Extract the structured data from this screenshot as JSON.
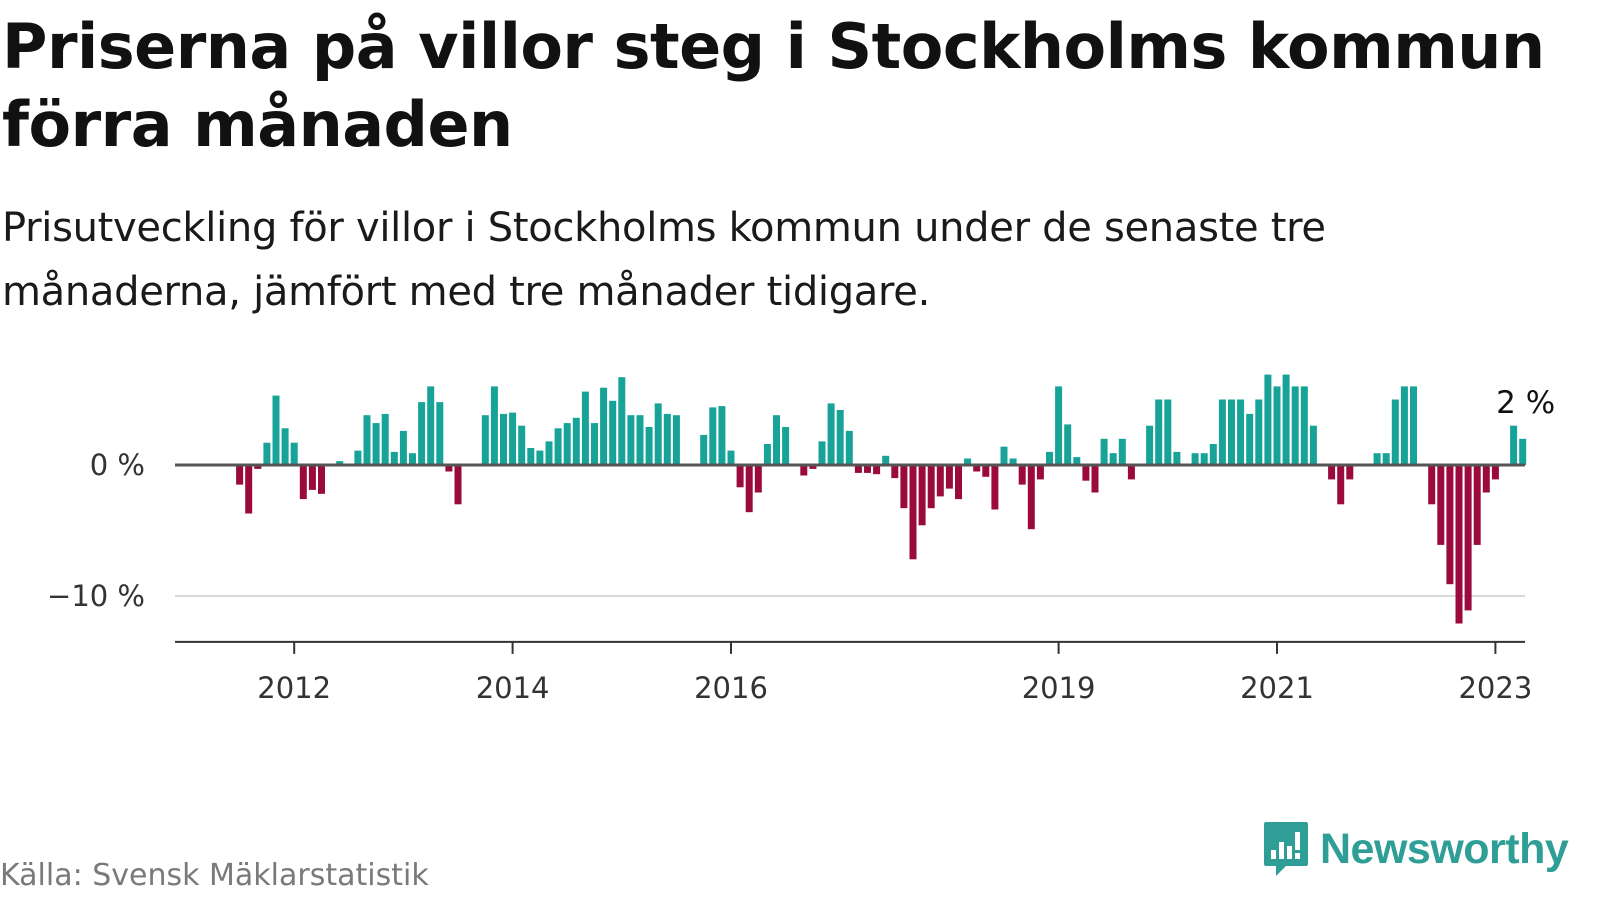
{
  "title": "Priserna på villor steg i Stockholms kommun förra månaden",
  "subtitle": "Prisutveckling för villor i Stockholms kommun under de senaste tre månaderna, jämfört med tre månader tidigare.",
  "source": "Källa: Svensk Mäklarstatistik",
  "brand": {
    "name": "Newsworthy",
    "logo_icon": "bar-chart-speech-bubble-icon"
  },
  "colors": {
    "positive": "#17a398",
    "negative": "#9b0a3d",
    "zero_line": "#555555",
    "grid": "#d9d9d9",
    "axis": "#333333",
    "brand": "#2e9e96"
  },
  "chart_data": {
    "type": "bar",
    "ylabel": "",
    "xlabel": "",
    "ylim": [
      -13.5,
      7.5
    ],
    "start": "2011-01",
    "yticks": [
      {
        "value": 0,
        "label": "0 %"
      },
      {
        "value": -10,
        "label": "−10 %"
      }
    ],
    "xticks": [
      {
        "month": "2012-01",
        "label": "2012"
      },
      {
        "month": "2014-01",
        "label": "2014"
      },
      {
        "month": "2016-01",
        "label": "2016"
      },
      {
        "month": "2019-01",
        "label": "2019"
      },
      {
        "month": "2021-01",
        "label": "2021"
      },
      {
        "month": "2023-01",
        "label": "2023"
      }
    ],
    "annotation": {
      "month": "2023-04",
      "text": "2 %"
    },
    "values": [
      0,
      0,
      0,
      0,
      0,
      0,
      -1.5,
      -3.7,
      -0.3,
      1.7,
      5.3,
      2.8,
      1.7,
      -2.6,
      -1.9,
      -2.2,
      0,
      0.3,
      0,
      1.1,
      3.8,
      3.2,
      3.9,
      1.0,
      2.6,
      0.9,
      4.8,
      6.0,
      4.8,
      -0.5,
      -3.0,
      0,
      0,
      3.8,
      6.0,
      3.9,
      4.0,
      3.0,
      1.3,
      1.1,
      1.8,
      2.8,
      3.2,
      3.6,
      5.6,
      3.2,
      5.9,
      4.9,
      6.7,
      3.8,
      3.8,
      2.9,
      4.7,
      3.9,
      3.8,
      0,
      0,
      2.3,
      4.4,
      4.5,
      1.1,
      -1.7,
      -3.6,
      -2.1,
      1.6,
      3.8,
      2.9,
      0,
      -0.8,
      -0.3,
      1.8,
      4.7,
      4.2,
      2.6,
      -0.6,
      -0.6,
      -0.7,
      0.7,
      -1.0,
      -3.3,
      -7.2,
      -4.6,
      -3.3,
      -2.4,
      -1.8,
      -2.6,
      0.5,
      -0.5,
      -0.9,
      -3.4,
      1.4,
      0.5,
      -1.5,
      -4.9,
      -1.1,
      1.0,
      6.0,
      3.1,
      0.6,
      -1.2,
      -2.1,
      2.0,
      0.9,
      2.0,
      -1.1,
      0,
      3.0,
      5.0,
      5.0,
      1.0,
      0,
      0.9,
      0.9,
      1.6,
      5.0,
      5.0,
      5.0,
      3.9,
      5.0,
      6.9,
      6.0,
      6.9,
      6.0,
      6.0,
      3.0,
      0,
      -1.1,
      -3.0,
      -1.1,
      0,
      0,
      0.9,
      0.9,
      5.0,
      6.0,
      6.0,
      0,
      -3.0,
      -6.1,
      -9.1,
      -12.1,
      -11.1,
      -6.1,
      -2.1,
      -1.1,
      0,
      3.0,
      2.0
    ]
  }
}
